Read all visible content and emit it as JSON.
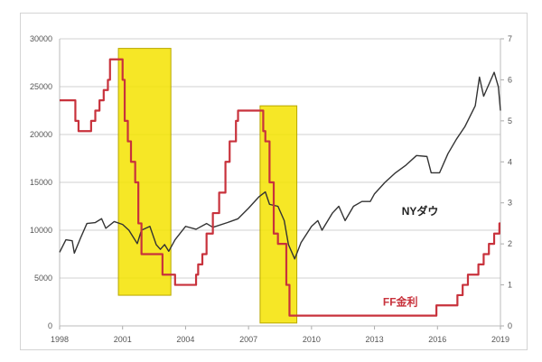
{
  "chart_data": {
    "type": "line",
    "title": "",
    "xlabel": "",
    "ylabel": "",
    "xlim": [
      1998,
      2019
    ],
    "ylim_left": [
      0,
      30000
    ],
    "ylim_right": [
      0,
      7
    ],
    "x_ticks": [
      "1998",
      "2001",
      "2004",
      "2007",
      "2010",
      "2013",
      "2016",
      "2019"
    ],
    "y_ticks_left": [
      "0",
      "5000",
      "10000",
      "15000",
      "20000",
      "25000",
      "30000"
    ],
    "y_ticks_right": [
      "0",
      "1",
      "2",
      "3",
      "4",
      "5",
      "6",
      "7"
    ],
    "grid": true,
    "series": [
      {
        "name": "NYダウ",
        "axis": "left",
        "color": "#333333",
        "x": [
          1998.0,
          1998.3,
          1998.6,
          1998.7,
          1999.0,
          1999.3,
          1999.7,
          2000.0,
          2000.2,
          2000.6,
          2001.0,
          2001.3,
          2001.7,
          2001.9,
          2002.3,
          2002.6,
          2002.8,
          2003.0,
          2003.2,
          2003.5,
          2004.0,
          2004.5,
          2005.0,
          2005.3,
          2006.0,
          2006.5,
          2007.0,
          2007.5,
          2007.8,
          2008.0,
          2008.4,
          2008.7,
          2008.9,
          2009.2,
          2009.5,
          2010.0,
          2010.3,
          2010.5,
          2011.0,
          2011.3,
          2011.6,
          2012.0,
          2012.4,
          2012.8,
          2013.0,
          2013.5,
          2014.0,
          2014.5,
          2015.0,
          2015.5,
          2015.7,
          2016.1,
          2016.5,
          2016.9,
          2017.3,
          2017.8,
          2018.0,
          2018.2,
          2018.7,
          2018.9,
          2019.0
        ],
        "y": [
          7700,
          9000,
          8900,
          7600,
          9200,
          10700,
          10800,
          11200,
          10200,
          10900,
          10600,
          10000,
          8600,
          10000,
          10400,
          8500,
          8000,
          8500,
          7800,
          9000,
          10400,
          10100,
          10700,
          10300,
          10800,
          11200,
          12300,
          13500,
          14000,
          12700,
          12500,
          11000,
          8500,
          7000,
          8700,
          10400,
          11000,
          10000,
          11800,
          12500,
          11000,
          12500,
          13000,
          13000,
          13800,
          15000,
          16000,
          16800,
          17800,
          17700,
          16000,
          16000,
          18000,
          19500,
          20800,
          23000,
          26000,
          24000,
          26500,
          25000,
          22500
        ]
      },
      {
        "name": "FF金利",
        "axis": "right",
        "color": "#c8323c",
        "step": true,
        "x": [
          1998.0,
          1998.75,
          1998.9,
          1999.5,
          1999.7,
          1999.9,
          2000.1,
          2000.3,
          2000.4,
          2001.0,
          2001.1,
          2001.25,
          2001.4,
          2001.6,
          2001.75,
          2001.9,
          2002.9,
          2003.5,
          2004.5,
          2004.6,
          2004.8,
          2005.0,
          2005.3,
          2005.6,
          2005.9,
          2006.1,
          2006.4,
          2006.5,
          2007.7,
          2007.8,
          2008.0,
          2008.2,
          2008.4,
          2008.8,
          2008.95,
          2015.95,
          2016.95,
          2017.2,
          2017.45,
          2017.95,
          2018.2,
          2018.45,
          2018.7,
          2018.95
        ],
        "y": [
          5.5,
          5.0,
          4.75,
          5.0,
          5.25,
          5.5,
          5.75,
          6.0,
          6.5,
          6.0,
          5.0,
          4.5,
          4.0,
          3.5,
          2.5,
          1.75,
          1.25,
          1.0,
          1.25,
          1.5,
          1.75,
          2.25,
          2.75,
          3.25,
          4.0,
          4.5,
          5.0,
          5.25,
          4.75,
          4.5,
          3.5,
          2.25,
          2.0,
          1.0,
          0.25,
          0.5,
          0.75,
          1.0,
          1.25,
          1.5,
          1.75,
          2.0,
          2.25,
          2.5
        ]
      }
    ],
    "highlights": [
      {
        "x": [
          2000.8,
          2003.3
        ],
        "y_left": [
          3200,
          29000
        ],
        "color": "#f5e300"
      },
      {
        "x": [
          2007.55,
          2009.3
        ],
        "y_left": [
          300,
          23000
        ],
        "color": "#f5e300"
      }
    ],
    "annotations": [
      {
        "text": "NYダウ",
        "x": 2014.3,
        "y_left": 11600,
        "color": "#222222"
      },
      {
        "text": "FF金利",
        "x": 2013.4,
        "y_right": 0.5,
        "color": "#c8323c"
      }
    ]
  }
}
